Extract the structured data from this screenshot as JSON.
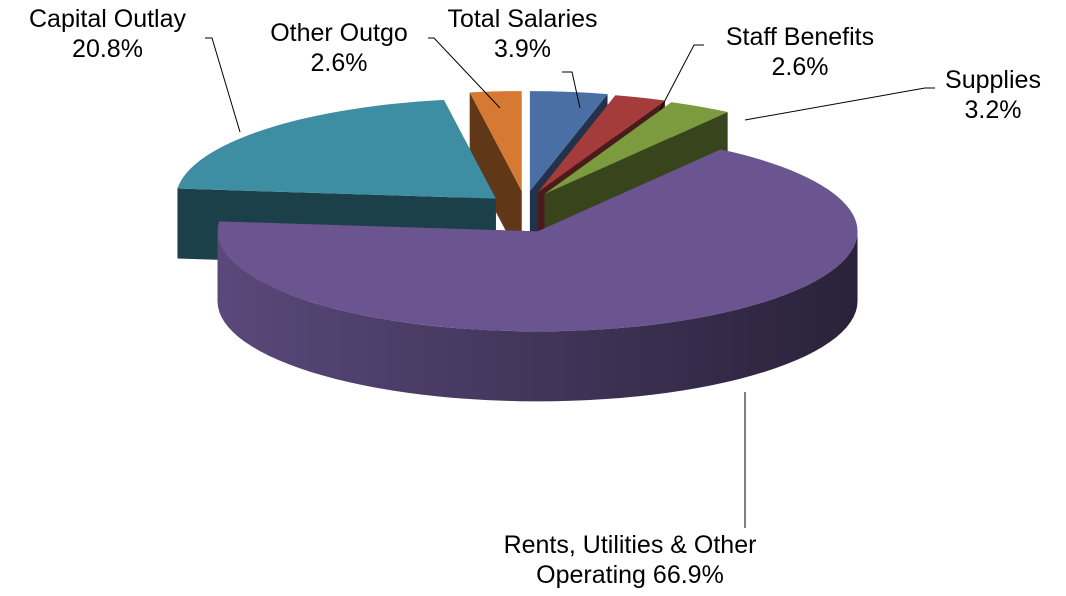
{
  "chart_data": {
    "type": "pie3d",
    "categories": [
      "Total Salaries",
      "Staff Benefits",
      "Supplies",
      "Rents, Utilities & Other Operating",
      "Capital Outlay",
      "Other Outgo"
    ],
    "values": [
      3.9,
      2.6,
      3.2,
      66.9,
      20.8,
      2.6
    ],
    "value_labels": [
      "3.9%",
      "2.6%",
      "3.2%",
      "66.9%",
      "20.8%",
      "2.6%"
    ],
    "colors": [
      "#4a6fa5",
      "#a33c3a",
      "#7c9a3e",
      "#6a5590",
      "#3d8ea3",
      "#d67a33"
    ]
  }
}
